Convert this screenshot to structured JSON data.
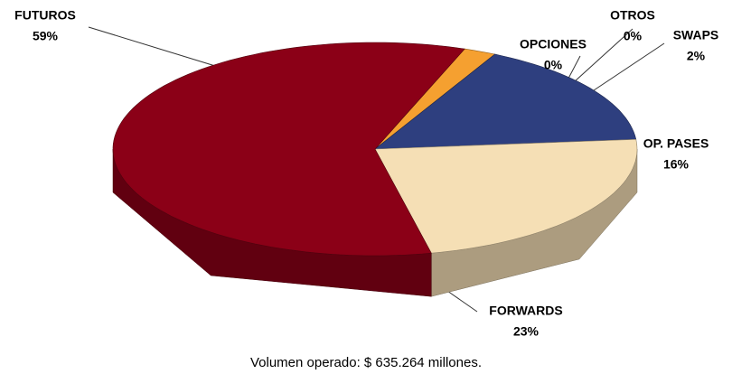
{
  "chart_data": {
    "type": "pie",
    "categories": [
      "OTROS",
      "OPCIONES",
      "SWAPS",
      "OP. PASES",
      "FORWARDS",
      "FUTUROS"
    ],
    "values": [
      0,
      0,
      2,
      16,
      23,
      59
    ],
    "value_labels": [
      "0%",
      "0%",
      "2%",
      "16%",
      "23%",
      "59%"
    ],
    "colors": [
      "#7f7f7f",
      "#6e9a3c",
      "#f5a030",
      "#2e3f7f",
      "#f5dfb5",
      "#8b0017"
    ],
    "subtitle": "Volumen operado: $ 635.264 millones."
  }
}
